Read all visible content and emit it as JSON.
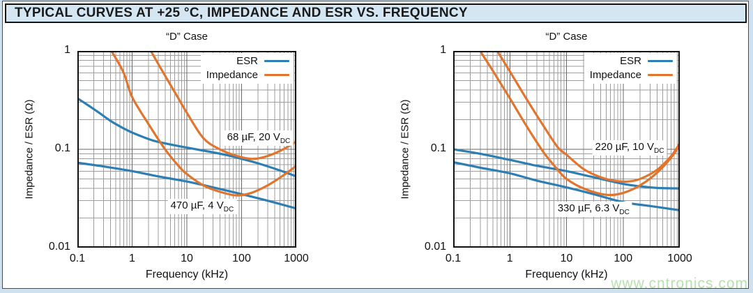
{
  "page": {
    "title": "TYPICAL CURVES AT +25 °C, IMPEDANCE AND ESR VS. FREQUENCY",
    "watermark": "www.cntronics.com"
  },
  "colors": {
    "esr": "#2d7eb3",
    "impedance": "#e2752e",
    "grid_major": "#696969",
    "grid_minor": "#9e9e9e",
    "frame": "#111111",
    "titlebar_bg": "#d4e6f2",
    "page_bg": "#cfe1ee",
    "watermark": "#b7e0b0"
  },
  "chart_data": [
    {
      "type": "line",
      "title": "“D” Case",
      "xlabel": "Frequency (kHz)",
      "ylabel": "Impedance / ESR (Ω)",
      "xscale": "log",
      "yscale": "log",
      "xlim": [
        0.1,
        1000
      ],
      "ylim": [
        0.01,
        1
      ],
      "x_ticks": [
        "0.1",
        "1",
        "10",
        "100",
        "1000"
      ],
      "y_ticks": [
        "1",
        "0.1",
        "0.01"
      ],
      "grid": "log major+minor",
      "legend_position": "top-right inside",
      "legend": [
        {
          "label": "ESR",
          "color_key": "esr"
        },
        {
          "label": "Impedance",
          "color_key": "impedance"
        }
      ],
      "series": [
        {
          "name": "ESR — 68 µF, 20 VDC",
          "color_key": "esr",
          "points": [
            [
              0.1,
              0.33
            ],
            [
              0.15,
              0.285
            ],
            [
              0.25,
              0.235
            ],
            [
              0.4,
              0.195
            ],
            [
              0.7,
              0.163
            ],
            [
              1,
              0.148
            ],
            [
              1.5,
              0.135
            ],
            [
              2.5,
              0.122
            ],
            [
              5,
              0.112
            ],
            [
              10,
              0.104
            ],
            [
              20,
              0.097
            ],
            [
              50,
              0.088
            ],
            [
              100,
              0.08
            ],
            [
              200,
              0.072
            ],
            [
              500,
              0.061
            ],
            [
              1000,
              0.053
            ]
          ]
        },
        {
          "name": "ESR — 470 µF, 4 VDC",
          "color_key": "esr",
          "points": [
            [
              0.1,
              0.073
            ],
            [
              0.3,
              0.067
            ],
            [
              1,
              0.06
            ],
            [
              3,
              0.053
            ],
            [
              10,
              0.047
            ],
            [
              30,
              0.041
            ],
            [
              100,
              0.035
            ],
            [
              300,
              0.03
            ],
            [
              1000,
              0.025
            ]
          ]
        },
        {
          "name": "Impedance — 68 µF, 20 VDC",
          "color_key": "impedance",
          "points": [
            [
              1.5,
              1.5
            ],
            [
              2.2,
              1.0
            ],
            [
              4,
              0.56
            ],
            [
              7,
              0.33
            ],
            [
              10,
              0.235
            ],
            [
              20,
              0.13
            ],
            [
              40,
              0.1
            ],
            [
              80,
              0.086
            ],
            [
              150,
              0.08
            ],
            [
              250,
              0.083
            ],
            [
              500,
              0.096
            ],
            [
              1000,
              0.12
            ]
          ]
        },
        {
          "name": "Impedance — 470 µF, 4 VDC",
          "color_key": "impedance",
          "points": [
            [
              0.28,
              1.5
            ],
            [
              0.42,
              1.0
            ],
            [
              0.7,
              0.6
            ],
            [
              1,
              0.34
            ],
            [
              2,
              0.18
            ],
            [
              4,
              0.1
            ],
            [
              7,
              0.068
            ],
            [
              10,
              0.056
            ],
            [
              20,
              0.043
            ],
            [
              40,
              0.037
            ],
            [
              80,
              0.034
            ],
            [
              150,
              0.036
            ],
            [
              300,
              0.043
            ],
            [
              600,
              0.055
            ],
            [
              1000,
              0.068
            ]
          ]
        }
      ],
      "annotations": [
        {
          "text": "68 µF, 20 V",
          "sub": "DC",
          "x": 205,
          "y": 0.13
        },
        {
          "text": "470 µF, 4 V",
          "sub": "DC",
          "x": 19,
          "y": 0.026
        }
      ]
    },
    {
      "type": "line",
      "title": "“D” Case",
      "xlabel": "Frequency (kHz)",
      "ylabel": "Impedance / ESR (Ω)",
      "xscale": "log",
      "yscale": "log",
      "xlim": [
        0.1,
        1000
      ],
      "ylim": [
        0.01,
        1
      ],
      "x_ticks": [
        "0.1",
        "1",
        "10",
        "100",
        "1000"
      ],
      "y_ticks": [
        "1",
        "0.1",
        "0.01"
      ],
      "grid": "log major+minor",
      "legend_position": "top-right inside",
      "legend": [
        {
          "label": "ESR",
          "color_key": "esr"
        },
        {
          "label": "Impedance",
          "color_key": "impedance"
        }
      ],
      "series": [
        {
          "name": "ESR — 220 µF, 10 VDC",
          "color_key": "esr",
          "points": [
            [
              0.1,
              0.1
            ],
            [
              0.3,
              0.09
            ],
            [
              1,
              0.078
            ],
            [
              3,
              0.068
            ],
            [
              10,
              0.06
            ],
            [
              30,
              0.052
            ],
            [
              100,
              0.0445
            ],
            [
              200,
              0.042
            ],
            [
              400,
              0.0405
            ],
            [
              1000,
              0.04
            ]
          ]
        },
        {
          "name": "ESR — 330 µF, 6.3 VDC",
          "color_key": "esr",
          "points": [
            [
              0.1,
              0.074
            ],
            [
              0.3,
              0.065
            ],
            [
              1,
              0.057
            ],
            [
              3,
              0.048
            ],
            [
              10,
              0.041
            ],
            [
              30,
              0.035
            ],
            [
              100,
              0.029
            ],
            [
              300,
              0.0265
            ],
            [
              1000,
              0.024
            ]
          ]
        },
        {
          "name": "Impedance — 220 µF, 10 VDC",
          "color_key": "impedance",
          "points": [
            [
              0.4,
              1.5
            ],
            [
              0.6,
              1.0
            ],
            [
              1,
              0.62
            ],
            [
              2,
              0.32
            ],
            [
              4,
              0.17
            ],
            [
              7,
              0.105
            ],
            [
              10,
              0.088
            ],
            [
              20,
              0.063
            ],
            [
              40,
              0.052
            ],
            [
              70,
              0.048
            ],
            [
              120,
              0.047
            ],
            [
              200,
              0.05
            ],
            [
              400,
              0.062
            ],
            [
              700,
              0.085
            ],
            [
              1000,
              0.115
            ]
          ]
        },
        {
          "name": "Impedance — 330 µF, 6.3 VDC",
          "color_key": "impedance",
          "points": [
            [
              0.2,
              1.5
            ],
            [
              0.3,
              1.0
            ],
            [
              0.5,
              0.63
            ],
            [
              1,
              0.33
            ],
            [
              2,
              0.17
            ],
            [
              4,
              0.092
            ],
            [
              7,
              0.062
            ],
            [
              10,
              0.05
            ],
            [
              20,
              0.04
            ],
            [
              50,
              0.0345
            ],
            [
              100,
              0.036
            ],
            [
              200,
              0.043
            ],
            [
              400,
              0.058
            ],
            [
              700,
              0.082
            ],
            [
              1000,
              0.11
            ]
          ]
        }
      ],
      "annotations": [
        {
          "text": "220 µF, 10 V",
          "sub": "DC",
          "x": 130,
          "y": 0.103
        },
        {
          "text": "330 µF, 6.3 V",
          "sub": "DC",
          "x": 30,
          "y": 0.0245
        }
      ]
    }
  ]
}
